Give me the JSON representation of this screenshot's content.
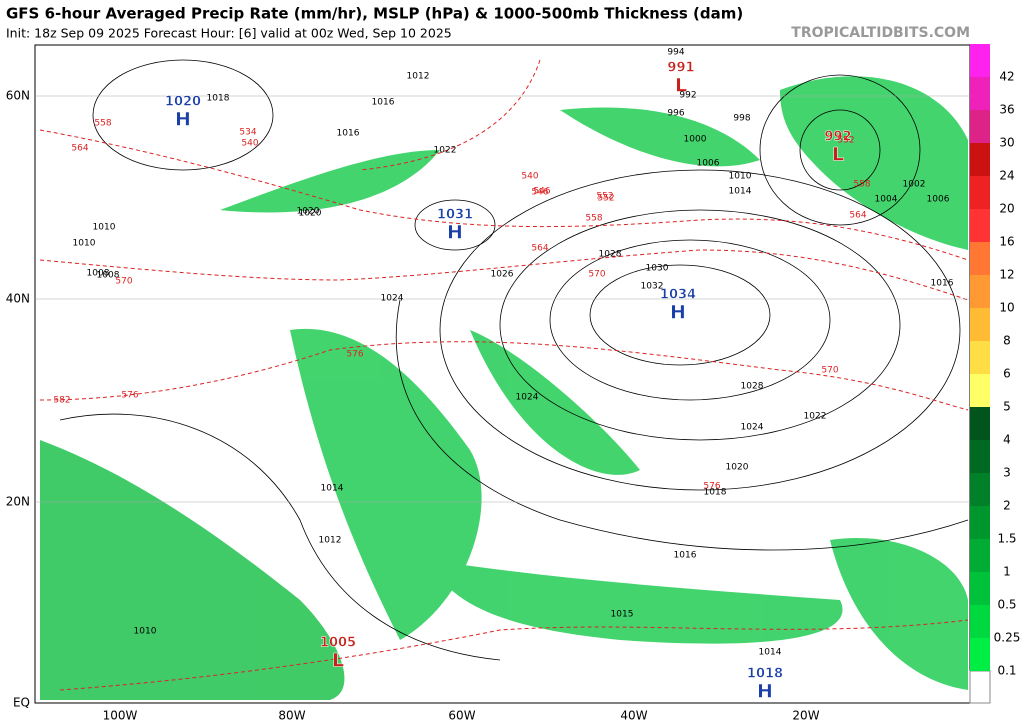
{
  "header": {
    "title": "GFS 6-hour Averaged Precip Rate (mm/hr), MSLP (hPa) & 1000-500mb Thickness (dam)",
    "subtitle": "Init: 18z Sep 09 2025   Forecast Hour: [6]   valid at 00z Wed, Sep 10 2025",
    "site": "TROPICALTIDBITS.COM"
  },
  "axes": {
    "lat_labels": [
      "60N",
      "40N",
      "20N",
      "EQ"
    ],
    "lon_labels": [
      "100W",
      "80W",
      "60W",
      "40W",
      "20W"
    ]
  },
  "colorbar": {
    "labels": [
      "0.1",
      "0.25",
      "0.5",
      "1",
      "1.5",
      "2",
      "3",
      "4",
      "5",
      "6",
      "8",
      "10",
      "12",
      "16",
      "20",
      "24",
      "30",
      "36",
      "42"
    ],
    "colors": [
      "#00ee44",
      "#00d840",
      "#00c23a",
      "#00ac34",
      "#00962e",
      "#008028",
      "#006a22",
      "#00541c",
      "#ffff66",
      "#ffdd44",
      "#ffbb33",
      "#ff9933",
      "#ff7733",
      "#ff3333",
      "#ee2222",
      "#cc1111",
      "#dd2288",
      "#ee22bb",
      "#ff22ee"
    ]
  },
  "centers": [
    {
      "type": "H",
      "pressure": "1020"
    },
    {
      "type": "H",
      "pressure": "1031"
    },
    {
      "type": "H",
      "pressure": "1034"
    },
    {
      "type": "H",
      "pressure": "1018"
    },
    {
      "type": "L",
      "pressure": "991"
    },
    {
      "type": "L",
      "pressure": "992"
    },
    {
      "type": "L",
      "pressure": "1005"
    }
  ],
  "isobar_labels": [
    "1018",
    "1016",
    "1012",
    "1010",
    "1008",
    "1022",
    "1024",
    "1026",
    "1028",
    "1020",
    "1030",
    "1032",
    "1028",
    "1024",
    "1022",
    "1020",
    "1018",
    "1016",
    "1014",
    "1012",
    "1010",
    "1006",
    "1004",
    "1002",
    "1016",
    "996",
    "998",
    "1000",
    "992",
    "994",
    "1006",
    "1010",
    "1014",
    "1020",
    "1024",
    "1016",
    "1015",
    "1014",
    "1010",
    "1008"
  ],
  "thickness_labels": [
    "558",
    "564",
    "570",
    "576",
    "582",
    "546",
    "552",
    "540",
    "534",
    "540",
    "546",
    "552",
    "558",
    "564",
    "570",
    "576",
    "576",
    "570",
    "552",
    "558",
    "564"
  ]
}
